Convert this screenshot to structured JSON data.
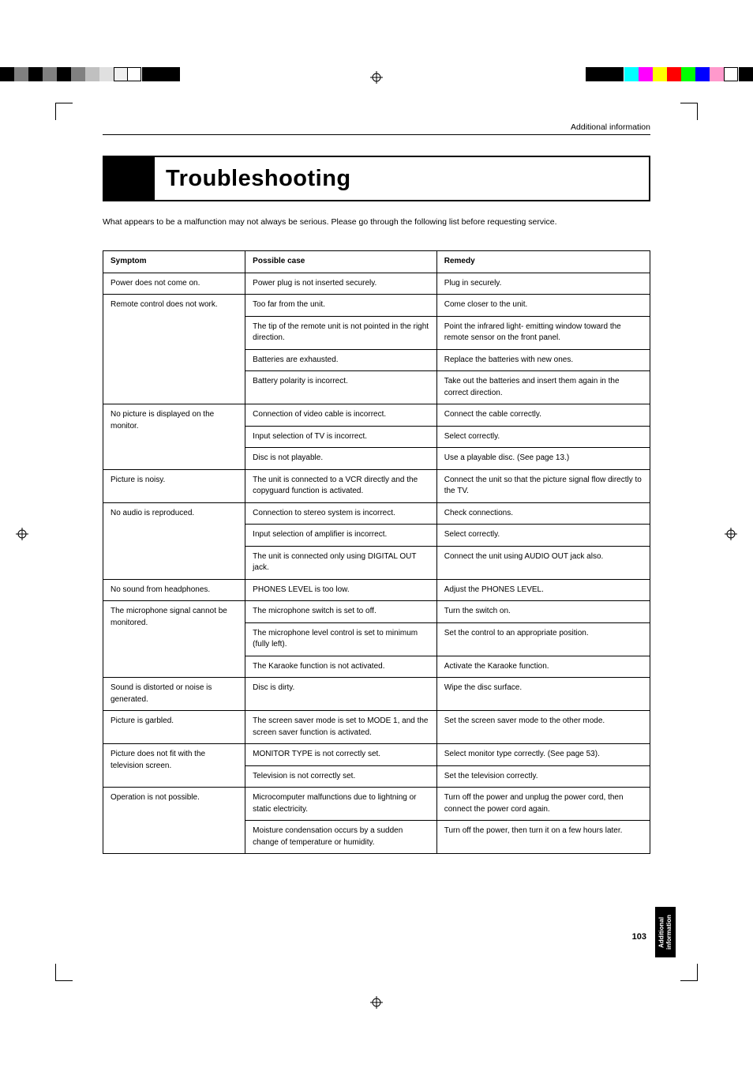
{
  "print_marks": {
    "left_bar": [
      "#000000",
      "#808080",
      "#000000",
      "#808080",
      "#000000",
      "#808080",
      "#c0c0c0",
      "#e0e0e0",
      "#f0f0f0",
      "#ffffff"
    ],
    "right_bar": [
      "#00ffff",
      "#ff00ff",
      "#ffff00",
      "#ff0000",
      "#00ff00",
      "#0000ff",
      "#ff66cc",
      "#ffffff"
    ]
  },
  "header": {
    "section_label": "Additional information"
  },
  "title": "Troubleshooting",
  "intro": "What appears to be a malfunction may not always be serious. Please go through the following list before requesting service.",
  "table": {
    "columns": [
      "Symptom",
      "Possible case",
      "Remedy"
    ],
    "rows": [
      {
        "symptom": "Power does not come on.",
        "cases": [
          {
            "case": "Power plug is not inserted securely.",
            "remedy": "Plug in securely."
          }
        ]
      },
      {
        "symptom": "Remote control does not work.",
        "cases": [
          {
            "case": "Too far from the unit.",
            "remedy": "Come closer to the unit."
          },
          {
            "case": "The tip of the remote unit is not pointed in the right direction.",
            "remedy": "Point the infrared light- emitting window toward the  remote sensor on the front panel."
          },
          {
            "case": "Batteries are exhausted.",
            "remedy": "Replace the batteries with new ones."
          },
          {
            "case": "Battery polarity is incorrect.",
            "remedy": "Take out the batteries and insert them again in the correct  direction."
          }
        ]
      },
      {
        "symptom": "No picture is displayed on the monitor.",
        "cases": [
          {
            "case": "Connection of video cable is incorrect.",
            "remedy": "Connect the cable correctly."
          },
          {
            "case": "Input selection of TV is incorrect.",
            "remedy": "Select correctly."
          },
          {
            "case": "Disc is not playable.",
            "remedy": "Use a playable disc. (See page 13.)"
          }
        ]
      },
      {
        "symptom": "Picture is noisy.",
        "cases": [
          {
            "case": "The unit is connected to a VCR directly and the copyguard function is activated.",
            "remedy": "Connect the unit so that the picture signal flow directly to the TV."
          }
        ]
      },
      {
        "symptom": "No audio is reproduced.",
        "cases": [
          {
            "case": "Connection to stereo system is incorrect.",
            "remedy": "Check connections."
          },
          {
            "case": "Input selection of amplifier is incorrect.",
            "remedy": "Select correctly."
          },
          {
            "case": "The unit is connected only using DIGITAL OUT jack.",
            "remedy": "Connect the unit using AUDIO OUT jack also."
          }
        ]
      },
      {
        "symptom": "No sound from headphones.",
        "cases": [
          {
            "case": "PHONES LEVEL is too low.",
            "remedy": "Adjust the PHONES LEVEL."
          }
        ]
      },
      {
        "symptom": "The microphone signal cannot be monitored.",
        "cases": [
          {
            "case": "The microphone switch is set to off.",
            "remedy": "Turn the switch on."
          },
          {
            "case": "The microphone level control is set to minimum (fully left).",
            "remedy": "Set the control to an appropriate position."
          },
          {
            "case": "The Karaoke function is not activated.",
            "remedy": "Activate the Karaoke function."
          }
        ]
      },
      {
        "symptom": "Sound is distorted or noise is generated.",
        "cases": [
          {
            "case": "Disc is dirty.",
            "remedy": "Wipe the disc surface."
          }
        ]
      },
      {
        "symptom": "Picture is garbled.",
        "cases": [
          {
            "case": "The screen saver mode is set to MODE 1,  and the screen saver function is activated.",
            "remedy": "Set the screen saver mode to the other mode."
          }
        ]
      },
      {
        "symptom": "Picture does not fit with the television screen.",
        "cases": [
          {
            "case": "MONITOR TYPE is not correctly set.",
            "remedy": "Select monitor type correctly. (See page 53)."
          },
          {
            "case": "Television is not correctly set.",
            "remedy": "Set the television correctly."
          }
        ]
      },
      {
        "symptom": "Operation is not possible.",
        "cases": [
          {
            "case": "Microcomputer malfunctions due to lightning or static electricity.",
            "remedy": "Turn off the power and unplug the power cord, then connect the power cord again."
          },
          {
            "case": "Moisture condensation occurs by a sudden change of temperature or humidity.",
            "remedy": "Turn off the power,  then turn it on a few hours later."
          }
        ]
      }
    ]
  },
  "side_tab": "Additional information",
  "page_number": "103"
}
